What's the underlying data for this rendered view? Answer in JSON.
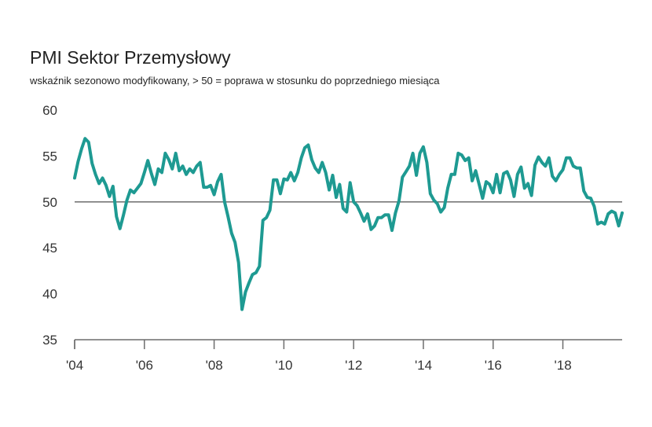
{
  "chart_data": {
    "type": "line",
    "title": "PMI Sektor Przemysłowy",
    "subtitle": "wskaźnik sezonowo modyfikowany, > 50 = poprawa w stosunku do poprzedniego miesiąca",
    "xlabel": "",
    "ylabel": "",
    "xlim": [
      2004.0,
      2019.7
    ],
    "ylim": [
      35,
      60
    ],
    "yticks": [
      35,
      40,
      45,
      50,
      55,
      60
    ],
    "ytick_labels": [
      "35",
      "40",
      "45",
      "50",
      "55",
      "60"
    ],
    "xticks": [
      2004,
      2006,
      2008,
      2010,
      2012,
      2014,
      2016,
      2018
    ],
    "xtick_labels": [
      "'04",
      "'06",
      "'08",
      "'10",
      "'12",
      "'14",
      "'16",
      "'18"
    ],
    "reference_line": 50,
    "grid": false,
    "line_color": "#1e9a92",
    "axis_color": "#6d6d6d",
    "series": [
      {
        "x": [
          2004.0,
          2004.1,
          2004.2,
          2004.3,
          2004.4,
          2004.5,
          2004.6,
          2004.7,
          2004.8,
          2004.9,
          2005.0,
          2005.1,
          2005.2,
          2005.3,
          2005.4,
          2005.5,
          2005.6,
          2005.7,
          2005.8,
          2005.9,
          2006.0,
          2006.1,
          2006.2,
          2006.3,
          2006.4,
          2006.5,
          2006.6,
          2006.7,
          2006.8,
          2006.9,
          2007.0,
          2007.1,
          2007.2,
          2007.3,
          2007.4,
          2007.5,
          2007.6,
          2007.7,
          2007.8,
          2007.9,
          2008.0,
          2008.1,
          2008.2,
          2008.3,
          2008.4,
          2008.5,
          2008.6,
          2008.7,
          2008.8,
          2008.9,
          2009.0,
          2009.1,
          2009.2,
          2009.3,
          2009.4,
          2009.5,
          2009.6,
          2009.7,
          2009.8,
          2009.9,
          2010.0,
          2010.1,
          2010.2,
          2010.3,
          2010.4,
          2010.5,
          2010.6,
          2010.7,
          2010.8,
          2010.9,
          2011.0,
          2011.1,
          2011.2,
          2011.3,
          2011.4,
          2011.5,
          2011.6,
          2011.7,
          2011.8,
          2011.9,
          2012.0,
          2012.1,
          2012.2,
          2012.3,
          2012.4,
          2012.5,
          2012.6,
          2012.7,
          2012.8,
          2012.9,
          2013.0,
          2013.1,
          2013.2,
          2013.3,
          2013.4,
          2013.5,
          2013.6,
          2013.7,
          2013.8,
          2013.9,
          2014.0,
          2014.1,
          2014.2,
          2014.3,
          2014.4,
          2014.5,
          2014.6,
          2014.7,
          2014.8,
          2014.9,
          2015.0,
          2015.1,
          2015.2,
          2015.3,
          2015.4,
          2015.5,
          2015.6,
          2015.7,
          2015.8,
          2015.9,
          2016.0,
          2016.1,
          2016.2,
          2016.3,
          2016.4,
          2016.5,
          2016.6,
          2016.7,
          2016.8,
          2016.9,
          2017.0,
          2017.1,
          2017.2,
          2017.3,
          2017.4,
          2017.5,
          2017.6,
          2017.7,
          2017.8,
          2017.9,
          2018.0,
          2018.1,
          2018.2,
          2018.3,
          2018.4,
          2018.5,
          2018.6,
          2018.7,
          2018.8,
          2018.9,
          2019.0,
          2019.1,
          2019.2,
          2019.3,
          2019.4,
          2019.5,
          2019.6,
          2019.7
        ],
        "values": [
          52.6,
          54.4,
          55.8,
          56.9,
          56.5,
          54.2,
          53.0,
          52.0,
          52.6,
          51.8,
          50.6,
          51.7,
          48.4,
          47.1,
          48.6,
          50.2,
          51.3,
          51.0,
          51.5,
          52.0,
          53.2,
          54.5,
          53.1,
          51.9,
          53.6,
          53.2,
          55.3,
          54.6,
          53.6,
          55.3,
          53.4,
          53.9,
          53.0,
          53.6,
          53.2,
          53.9,
          54.3,
          51.6,
          51.6,
          51.8,
          50.8,
          52.2,
          53.0,
          50.0,
          48.4,
          46.6,
          45.6,
          43.4,
          38.3,
          40.2,
          41.2,
          42.1,
          42.3,
          43.0,
          48.0,
          48.3,
          49.1,
          52.4,
          52.4,
          50.9,
          52.5,
          52.4,
          53.2,
          52.3,
          53.2,
          54.8,
          55.9,
          56.2,
          54.6,
          53.7,
          53.2,
          54.3,
          53.2,
          51.3,
          52.9,
          50.5,
          51.9,
          49.3,
          48.9,
          52.1,
          50.0,
          49.6,
          48.8,
          47.9,
          48.7,
          47.0,
          47.4,
          48.3,
          48.3,
          48.6,
          48.6,
          46.9,
          48.8,
          50.1,
          52.7,
          53.3,
          53.9,
          55.3,
          52.9,
          55.3,
          56.0,
          54.3,
          50.9,
          50.2,
          49.8,
          48.9,
          49.4,
          51.5,
          53.0,
          53.0,
          55.3,
          55.1,
          54.5,
          54.8,
          52.3,
          53.4,
          51.9,
          50.4,
          52.2,
          51.9,
          51.0,
          53.0,
          51.0,
          53.1,
          53.3,
          52.4,
          50.6,
          53.0,
          53.8,
          51.5,
          52.0,
          50.7,
          54.0,
          54.9,
          54.3,
          53.9,
          54.8,
          52.8,
          52.3,
          53.0,
          53.5,
          54.8,
          54.8,
          53.9,
          53.7,
          53.7,
          51.2,
          50.5,
          50.4,
          49.5,
          47.6,
          47.8,
          47.6,
          48.7,
          49.0,
          48.8,
          47.4,
          48.8
        ]
      }
    ]
  }
}
